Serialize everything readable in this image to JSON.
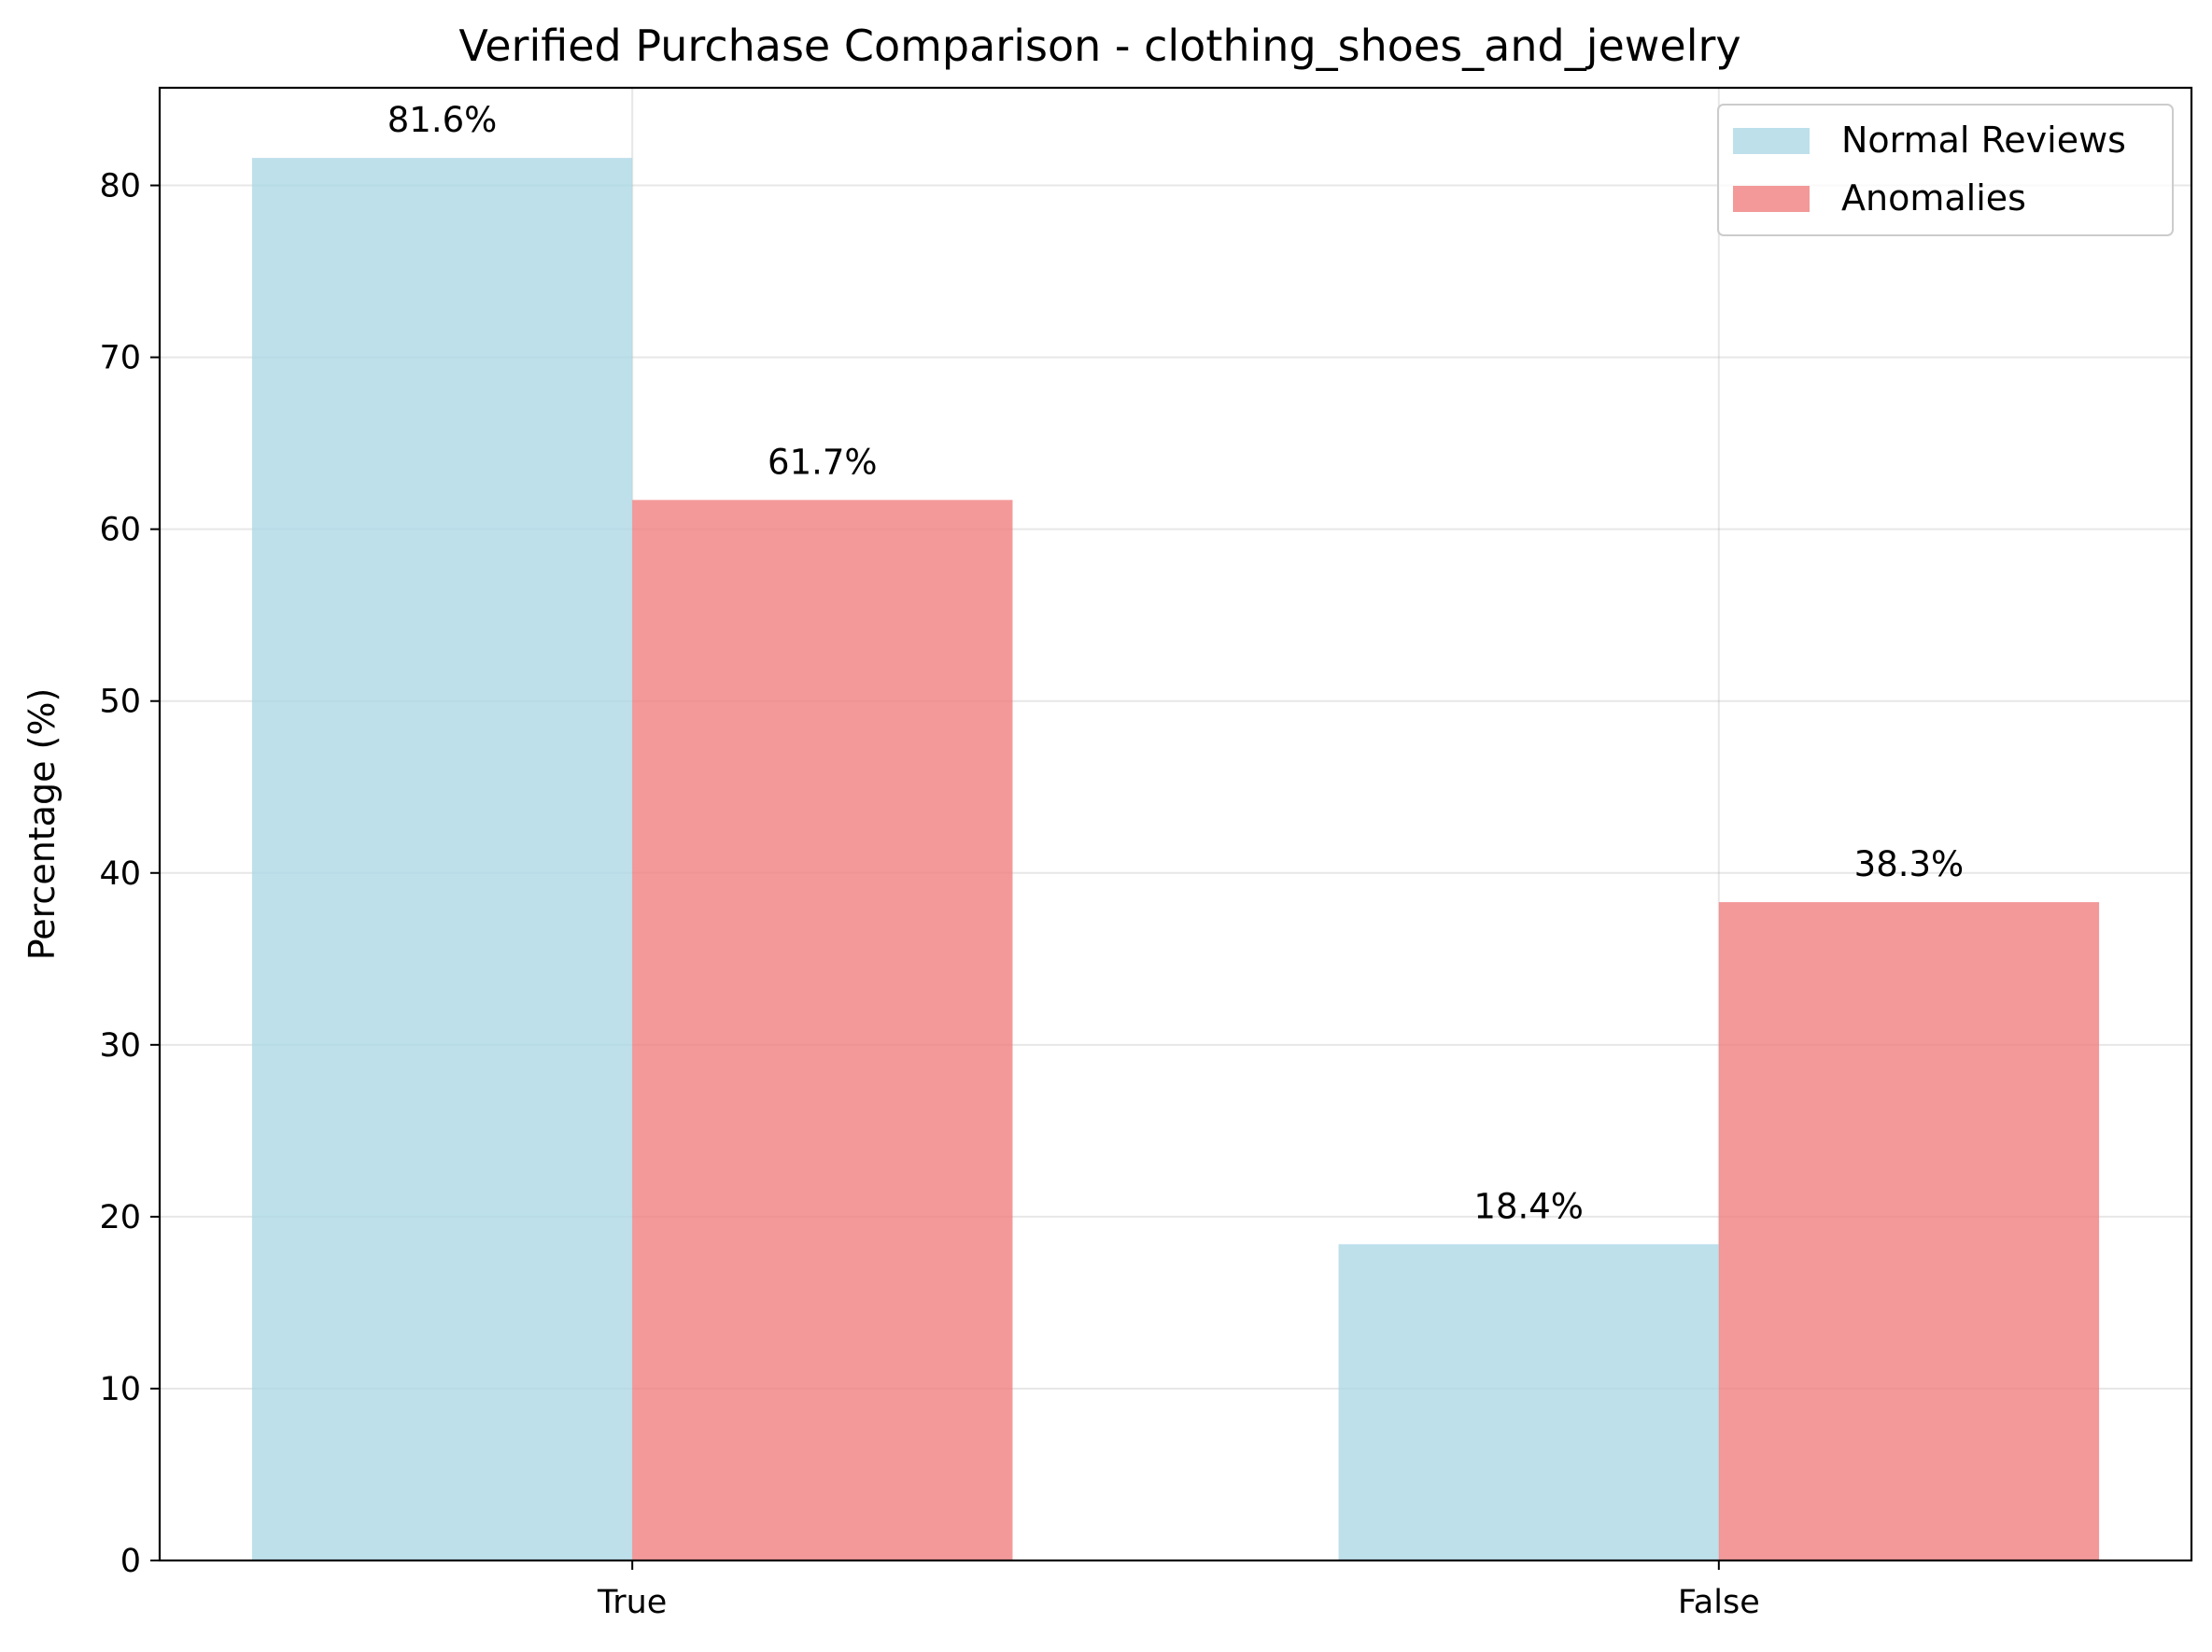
{
  "chart_data": {
    "type": "bar",
    "title": "Verified Purchase Comparison - clothing_shoes_and_jewelry",
    "xlabel": "",
    "ylabel": "Percentage (%)",
    "categories": [
      "True",
      "False"
    ],
    "series": [
      {
        "name": "Normal Reviews",
        "values": [
          81.6,
          18.4
        ],
        "labels": [
          "81.6%",
          "18.4%"
        ],
        "color": "#add8e6"
      },
      {
        "name": "Anomalies",
        "values": [
          61.7,
          38.3
        ],
        "labels": [
          "61.7%",
          "38.3%"
        ],
        "color": "#f08080"
      }
    ],
    "ylim": [
      0,
      85.68
    ],
    "yticks": [
      0,
      10,
      20,
      30,
      40,
      50,
      60,
      70,
      80
    ],
    "ytick_labels": [
      "0",
      "10",
      "20",
      "30",
      "40",
      "50",
      "60",
      "70",
      "80"
    ],
    "grid": true,
    "legend_position": "top-right"
  }
}
